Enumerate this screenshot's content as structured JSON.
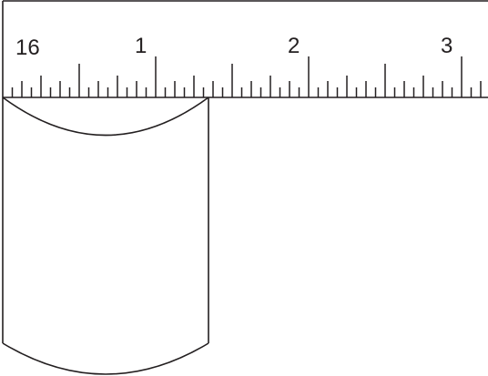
{
  "ruler": {
    "unit_label": "16",
    "major_labels": [
      "1",
      "2",
      "3"
    ],
    "major_values": [
      1,
      2,
      3
    ],
    "subdivisions_per_unit": 16
  },
  "object": {
    "shape": "cylinder-like block with concave top edge and convex bottom edge",
    "left_edge_value": 0,
    "right_edge_value": 1.375
  },
  "colors": {
    "line": "#231f20",
    "background": "#ffffff"
  }
}
